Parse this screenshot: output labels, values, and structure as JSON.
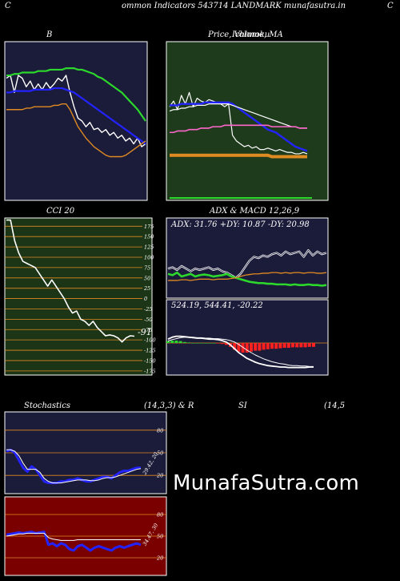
{
  "header": {
    "left_char": "C",
    "right_char": "C",
    "title": "ommon  Indicators 543714  LANDMARK munafasutra.in"
  },
  "colors": {
    "navy": "#1b1b3a",
    "green_panel": "#1e3c1c",
    "cci_panel": "#1b3516",
    "stoch_bg": "#1b1b3a",
    "rsi_bg": "#7a0000",
    "orange": "#e08a22",
    "blue": "#2323ff",
    "green_line": "#2bd82b",
    "red": "#ff2020",
    "white": "#ffffff"
  },
  "watermark": "MunafaSutra.com",
  "chart_data": [
    {
      "id": "bollinger",
      "type": "line",
      "title": "B",
      "x": [
        0,
        1,
        2,
        3,
        4,
        5,
        6,
        7,
        8,
        9,
        10,
        11,
        12,
        13,
        14,
        15,
        16,
        17,
        18,
        19,
        20,
        21,
        22,
        23,
        24,
        25,
        26,
        27,
        28,
        29,
        30,
        31,
        32,
        33,
        34,
        35
      ],
      "ylim": [
        0,
        100
      ],
      "series": [
        {
          "name": "close",
          "color": "#ffffff",
          "values": [
            80,
            82,
            70,
            82,
            80,
            74,
            78,
            72,
            76,
            72,
            77,
            73,
            76,
            80,
            78,
            82,
            70,
            60,
            52,
            50,
            46,
            49,
            44,
            45,
            42,
            44,
            40,
            42,
            38,
            40,
            36,
            38,
            34,
            38,
            32,
            34
          ]
        },
        {
          "name": "upper",
          "color": "#2bd82b",
          "values": [
            82,
            82,
            83,
            83,
            84,
            84,
            84,
            84,
            85,
            85,
            85,
            86,
            86,
            86,
            86,
            87,
            87,
            87,
            86,
            86,
            85,
            84,
            83,
            81,
            80,
            78,
            76,
            74,
            72,
            70,
            67,
            64,
            61,
            58,
            54,
            50
          ]
        },
        {
          "name": "middle",
          "color": "#2323ff",
          "values": [
            70,
            70,
            71,
            71,
            71,
            71,
            71,
            72,
            72,
            72,
            72,
            72,
            73,
            73,
            73,
            72,
            71,
            70,
            68,
            66,
            64,
            62,
            60,
            58,
            56,
            54,
            52,
            50,
            48,
            46,
            44,
            42,
            40,
            38,
            36,
            34
          ]
        },
        {
          "name": "lower",
          "color": "#e08a22",
          "values": [
            58,
            58,
            58,
            58,
            58,
            59,
            59,
            60,
            60,
            60,
            60,
            60,
            61,
            61,
            62,
            62,
            58,
            52,
            46,
            42,
            38,
            35,
            32,
            30,
            28,
            26,
            25,
            25,
            25,
            25,
            26,
            28,
            30,
            32,
            34,
            36
          ]
        }
      ]
    },
    {
      "id": "price_ma",
      "type": "line",
      "title": "Price, Volume, MA",
      "subtitle": "Ichimoku",
      "x": [
        0,
        1,
        2,
        3,
        4,
        5,
        6,
        7,
        8,
        9,
        10,
        11,
        12,
        13,
        14,
        15,
        16,
        17,
        18,
        19,
        20,
        21,
        22,
        23,
        24,
        25,
        26,
        27,
        28,
        29,
        30,
        31,
        32,
        33,
        34,
        35
      ],
      "ylim": [
        0,
        100
      ],
      "series": [
        {
          "name": "price",
          "color": "#ffffff",
          "values": [
            60,
            64,
            58,
            68,
            62,
            70,
            60,
            66,
            64,
            63,
            65,
            64,
            63,
            62,
            60,
            62,
            40,
            36,
            34,
            32,
            33,
            31,
            32,
            30,
            30,
            31,
            30,
            29,
            30,
            29,
            28,
            28,
            27,
            27,
            28,
            27
          ]
        },
        {
          "name": "ma_blue",
          "color": "#2323ff",
          "values": [
            61,
            61,
            61,
            62,
            62,
            62,
            62,
            62,
            62,
            63,
            63,
            63,
            63,
            63,
            63,
            63,
            62,
            60,
            58,
            56,
            54,
            52,
            50,
            48,
            46,
            44,
            43,
            42,
            40,
            38,
            36,
            34,
            32,
            31,
            30,
            29
          ]
        },
        {
          "name": "ma_white",
          "color": "#ffffff",
          "values": [
            57,
            58,
            58,
            59,
            59,
            60,
            60,
            61,
            61,
            61,
            62,
            62,
            62,
            62,
            62,
            62,
            61,
            60,
            59,
            58,
            57,
            56,
            55,
            54,
            53,
            52,
            51,
            50,
            49,
            48,
            47,
            46,
            46,
            45,
            45,
            45
          ]
        },
        {
          "name": "ma_pink",
          "color": "#ff66cc",
          "values": [
            42,
            42,
            43,
            43,
            43,
            44,
            44,
            44,
            45,
            45,
            45,
            46,
            46,
            46,
            47,
            47,
            47,
            47,
            47,
            47,
            47,
            47,
            47,
            47,
            47,
            47,
            46,
            46,
            46,
            46,
            46,
            46,
            46,
            45,
            45,
            45
          ]
        },
        {
          "name": "ma_orange",
          "color": "#e08a22",
          "values": [
            26,
            26,
            26,
            26,
            26,
            26,
            26,
            26,
            26,
            26,
            26,
            26,
            26,
            26,
            26,
            26,
            26,
            26,
            26,
            26,
            26,
            26,
            26,
            26,
            26,
            26,
            25,
            25,
            25,
            25,
            25,
            25,
            25,
            25,
            25,
            25
          ]
        }
      ]
    },
    {
      "id": "cci",
      "type": "line",
      "title": "CCI 20",
      "current_label": "-91",
      "yticks": [
        "175",
        "150",
        "125",
        "100",
        "75",
        "50",
        "25",
        "0",
        "-25",
        "-50",
        "-75",
        "-100",
        "-125",
        "-150",
        "-175"
      ],
      "ytick_values": [
        175,
        150,
        125,
        100,
        75,
        50,
        25,
        0,
        -25,
        -50,
        -75,
        -100,
        -125,
        -150,
        -175
      ],
      "ylim": [
        -185,
        195
      ],
      "x": [
        0,
        1,
        2,
        3,
        4,
        5,
        6,
        7,
        8,
        9,
        10,
        11,
        12,
        13,
        14,
        15,
        16,
        17,
        18,
        19,
        20,
        21,
        22,
        23,
        24,
        25,
        26,
        27,
        28,
        29,
        30,
        31
      ],
      "series": [
        {
          "name": "cci",
          "color": "#ffffff",
          "values": [
            190,
            190,
            140,
            110,
            90,
            85,
            80,
            75,
            60,
            45,
            30,
            45,
            30,
            15,
            0,
            -20,
            -35,
            -30,
            -50,
            -55,
            -65,
            -55,
            -70,
            -80,
            -90,
            -88,
            -90,
            -95,
            -105,
            -95,
            -90,
            -91
          ]
        }
      ]
    },
    {
      "id": "adx",
      "type": "line",
      "title": "ADX  & MACD 12,26,9",
      "label": "ADX: 31.76  +DY: 10.87 -DY: 20.98",
      "ylim": [
        0,
        100
      ],
      "x": [
        0,
        1,
        2,
        3,
        4,
        5,
        6,
        7,
        8,
        9,
        10,
        11,
        12,
        13,
        14,
        15,
        16,
        17,
        18,
        19,
        20,
        21,
        22,
        23,
        24,
        25,
        26,
        27,
        28,
        29,
        30,
        31,
        32,
        33,
        34,
        35
      ],
      "series": [
        {
          "name": "adx",
          "color": "#ffffff",
          "values": [
            40,
            42,
            38,
            44,
            40,
            36,
            40,
            38,
            40,
            42,
            38,
            40,
            36,
            34,
            30,
            26,
            32,
            42,
            52,
            58,
            56,
            60,
            58,
            62,
            64,
            60,
            66,
            62,
            64,
            66,
            58,
            68,
            60,
            66,
            62,
            64
          ]
        },
        {
          "name": "plus_dy",
          "color": "#2bd82b",
          "values": [
            32,
            30,
            34,
            28,
            30,
            32,
            28,
            30,
            31,
            30,
            28,
            29,
            30,
            32,
            28,
            26,
            24,
            22,
            20,
            19,
            18,
            18,
            17,
            17,
            16,
            16,
            16,
            15,
            16,
            15,
            15,
            16,
            15,
            15,
            14,
            15
          ]
        },
        {
          "name": "minus_dy",
          "color": "#e08a22",
          "values": [
            22,
            22,
            22,
            23,
            23,
            22,
            23,
            24,
            24,
            24,
            23,
            24,
            24,
            24,
            25,
            26,
            28,
            30,
            31,
            32,
            32,
            33,
            33,
            34,
            34,
            33,
            34,
            33,
            34,
            34,
            33,
            34,
            34,
            33,
            33,
            34
          ]
        }
      ]
    },
    {
      "id": "macd",
      "type": "bar",
      "label": "524.19,  544.41,  -20.22",
      "ylim": [
        -60,
        60
      ],
      "x": [
        0,
        1,
        2,
        3,
        4,
        5,
        6,
        7,
        8,
        9,
        10,
        11,
        12,
        13,
        14,
        15,
        16,
        17,
        18,
        19,
        20,
        21,
        22,
        23,
        24,
        25,
        26,
        27,
        28,
        29,
        30,
        31,
        32,
        33,
        34,
        35
      ],
      "series": [
        {
          "name": "macd",
          "color": "#ffffff",
          "values": [
            8,
            12,
            14,
            14,
            13,
            12,
            11,
            10,
            10,
            9,
            8,
            8,
            7,
            5,
            2,
            -4,
            -12,
            -20,
            -26,
            -32,
            -36,
            -40,
            -43,
            -45,
            -47,
            -48,
            -49,
            -50,
            -50,
            -51,
            -51,
            -51,
            -51,
            -51,
            -50,
            -50
          ]
        },
        {
          "name": "signal",
          "color": "#ffffff",
          "values": [
            4,
            7,
            9,
            11,
            12,
            12,
            12,
            11,
            11,
            10,
            10,
            9,
            9,
            8,
            7,
            5,
            2,
            -3,
            -9,
            -15,
            -20,
            -25,
            -29,
            -33,
            -36,
            -39,
            -41,
            -43,
            -44,
            -46,
            -47,
            -47,
            -48,
            -48,
            -49,
            -49
          ]
        },
        {
          "name": "histogram",
          "color": "#2bd82b",
          "values": [
            4,
            5,
            5,
            4,
            2,
            1,
            0,
            0,
            0,
            0,
            0,
            0,
            -1,
            -2,
            -4,
            -8,
            -14,
            -18,
            -20,
            -20,
            -18,
            -16,
            -16,
            -14,
            -13,
            -12,
            -12,
            -11,
            -10,
            -10,
            -9,
            -9,
            -9,
            -9,
            -8,
            -8
          ]
        }
      ]
    },
    {
      "id": "stochastics",
      "type": "line",
      "title": "Stochastics",
      "params": "(14,3,3) & R",
      "current_label": "29.42, 20",
      "yticks": [
        "80",
        "50",
        "20"
      ],
      "ytick_values": [
        80,
        50,
        20
      ],
      "ylim": [
        0,
        100
      ],
      "x": [
        0,
        1,
        2,
        3,
        4,
        5,
        6,
        7,
        8,
        9,
        10,
        11,
        12,
        13,
        14,
        15,
        16,
        17,
        18,
        19,
        20,
        21,
        22,
        23,
        24,
        25,
        26,
        27,
        28,
        29,
        30,
        31,
        32
      ],
      "series": [
        {
          "name": "k",
          "color": "#2323ff",
          "values": [
            52,
            54,
            50,
            40,
            30,
            25,
            32,
            28,
            20,
            12,
            10,
            10,
            10,
            12,
            12,
            14,
            14,
            16,
            14,
            12,
            12,
            14,
            16,
            18,
            18,
            16,
            20,
            24,
            26,
            26,
            28,
            30,
            30
          ]
        },
        {
          "name": "d",
          "color": "#ffffff",
          "values": [
            54,
            54,
            52,
            46,
            36,
            28,
            28,
            28,
            24,
            16,
            12,
            10,
            10,
            10,
            11,
            12,
            13,
            14,
            14,
            14,
            13,
            13,
            14,
            16,
            17,
            17,
            18,
            20,
            22,
            24,
            26,
            28,
            29
          ]
        }
      ]
    },
    {
      "id": "rsi",
      "type": "line",
      "title": "SI",
      "params": "(14,5",
      "current_label": "34.47, 30",
      "yticks": [
        "80",
        "50",
        "20"
      ],
      "ytick_values": [
        80,
        50,
        20
      ],
      "ylim": [
        0,
        100
      ],
      "x": [
        0,
        1,
        2,
        3,
        4,
        5,
        6,
        7,
        8,
        9,
        10,
        11,
        12,
        13,
        14,
        15,
        16,
        17,
        18,
        19,
        20,
        21,
        22,
        23,
        24,
        25,
        26,
        27,
        28,
        29,
        30,
        31,
        32
      ],
      "series": [
        {
          "name": "rsi",
          "color": "#2323ff",
          "values": [
            52,
            53,
            54,
            55,
            54,
            55,
            56,
            54,
            55,
            56,
            38,
            40,
            36,
            40,
            38,
            32,
            30,
            36,
            38,
            34,
            30,
            34,
            36,
            34,
            32,
            30,
            34,
            36,
            34,
            36,
            38,
            40,
            38
          ]
        },
        {
          "name": "rsi_ma",
          "color": "#ffffff",
          "values": [
            50,
            51,
            52,
            53,
            53,
            54,
            54,
            54,
            54,
            54,
            48,
            46,
            45,
            44,
            44,
            44,
            44,
            45,
            45,
            45,
            45,
            45,
            45,
            45,
            45,
            45,
            45,
            45,
            45,
            45,
            45,
            45,
            45
          ]
        }
      ]
    }
  ]
}
